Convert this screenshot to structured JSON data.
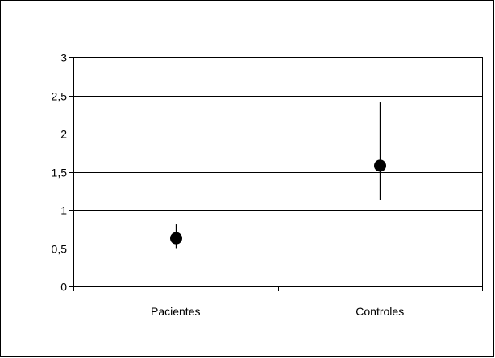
{
  "chart_data": {
    "type": "scatter",
    "categories": [
      "Pacientes",
      "Controles"
    ],
    "values": [
      0.63,
      1.58
    ],
    "error_low": [
      0.5,
      1.13
    ],
    "error_high": [
      0.81,
      2.41
    ],
    "ylim": [
      0,
      3
    ],
    "yticks": [
      0,
      0.5,
      1,
      1.5,
      2,
      2.5,
      3
    ],
    "ytick_labels": [
      "0",
      "0,5",
      "1",
      "1,5",
      "2",
      "2,5",
      "3"
    ],
    "grid": true,
    "legend": false,
    "title": "",
    "xlabel": "",
    "ylabel": "",
    "colors": {
      "marker": "#000000",
      "grid": "#000000",
      "axis": "#000000",
      "frame": "#000000",
      "background": "#ffffff"
    }
  }
}
